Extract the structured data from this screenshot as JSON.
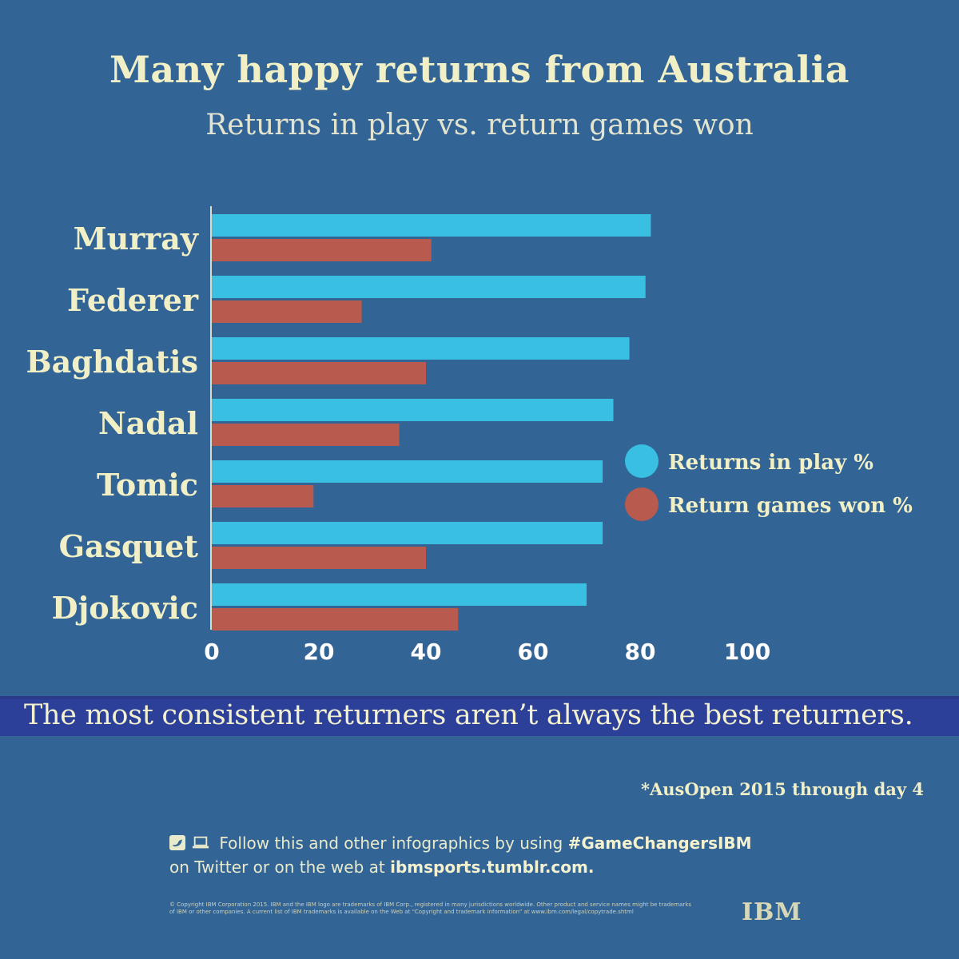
{
  "chart_data": {
    "type": "bar",
    "orientation": "horizontal",
    "title": "Many happy returns from Australia",
    "subtitle": "Returns in play vs. return games won",
    "categories": [
      "Murray",
      "Federer",
      "Baghdatis",
      "Nadal",
      "Tomic",
      "Gasquet",
      "Djokovic"
    ],
    "series": [
      {
        "name": "Returns in play %",
        "color": "#38bfe2",
        "values": [
          82,
          81,
          78,
          75,
          73,
          73,
          70
        ]
      },
      {
        "name": "Return games won %",
        "color": "#b85b4e",
        "values": [
          41,
          28,
          40,
          35,
          19,
          40,
          46
        ]
      }
    ],
    "xlim": [
      0,
      100
    ],
    "xticks": [
      "0",
      "20",
      "40",
      "60",
      "80",
      "100"
    ],
    "grid": false,
    "legend": "right"
  },
  "banner": "The most consistent returners aren’t always the best returners.",
  "footnote": "*AusOpen 2015 through day 4",
  "follow": {
    "line1_prefix": "Follow this and other infographics by using ",
    "hashtag": "#GameChangersIBM",
    "line2_prefix": "on Twitter or on the web at ",
    "url": "ibmsports.tumblr.com."
  },
  "copyright": "© Copyright IBM Corporation 2015. IBM and the IBM logo are trademarks of IBM Corp., registered in many jurisdictions worldwide. Other product and service names might be trademarks of IBM or other companies. A current list of IBM trademarks is available on the Web at “Copyright and trademark information” at www.ibm.com/legal/copytrade.shtml",
  "logo": "IBM",
  "colors": {
    "background": "#336496",
    "text": "#f1efc6",
    "banner": "#2c3f99"
  }
}
